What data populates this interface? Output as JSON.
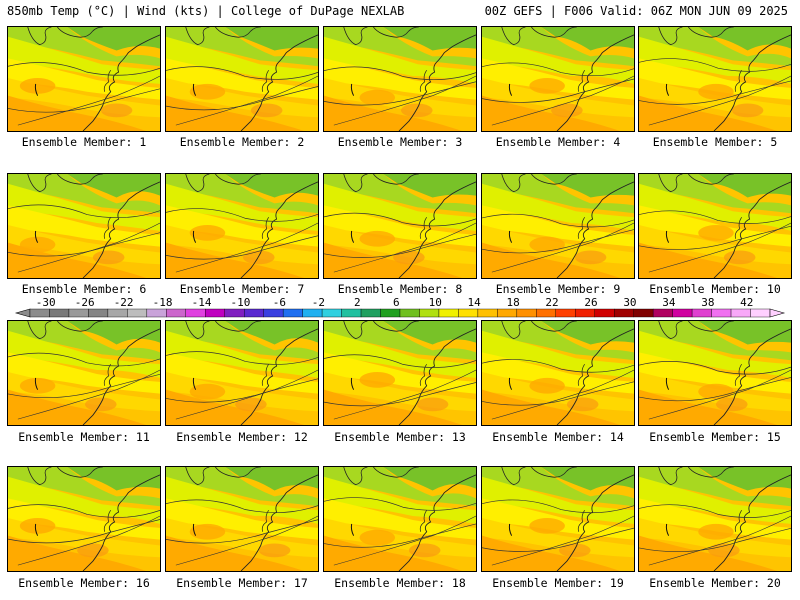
{
  "header": {
    "left": "850mb Temp (°C) | Wind (kts) | College of DuPage NEXLAB",
    "right": "00Z GEFS | F006 Valid: 06Z MON JUN 09 2025"
  },
  "panel_label_prefix": "Ensemble Member: ",
  "members": [
    {
      "id": 1,
      "label": "Ensemble Member: 1"
    },
    {
      "id": 2,
      "label": "Ensemble Member: 2"
    },
    {
      "id": 3,
      "label": "Ensemble Member: 3"
    },
    {
      "id": 4,
      "label": "Ensemble Member: 4"
    },
    {
      "id": 5,
      "label": "Ensemble Member: 5"
    },
    {
      "id": 6,
      "label": "Ensemble Member: 6"
    },
    {
      "id": 7,
      "label": "Ensemble Member: 7"
    },
    {
      "id": 8,
      "label": "Ensemble Member: 8"
    },
    {
      "id": 9,
      "label": "Ensemble Member: 9"
    },
    {
      "id": 10,
      "label": "Ensemble Member: 10"
    },
    {
      "id": 11,
      "label": "Ensemble Member: 11"
    },
    {
      "id": 12,
      "label": "Ensemble Member: 12"
    },
    {
      "id": 13,
      "label": "Ensemble Member: 13"
    },
    {
      "id": 14,
      "label": "Ensemble Member: 14"
    },
    {
      "id": 15,
      "label": "Ensemble Member: 15"
    },
    {
      "id": 16,
      "label": "Ensemble Member: 16"
    },
    {
      "id": 17,
      "label": "Ensemble Member: 17"
    },
    {
      "id": 18,
      "label": "Ensemble Member: 18"
    },
    {
      "id": 19,
      "label": "Ensemble Member: 19"
    },
    {
      "id": 20,
      "label": "Ensemble Member: 20"
    }
  ],
  "colorbar": {
    "ticks": [
      "-30",
      "-26",
      "-22",
      "-18",
      "-14",
      "-10",
      "-6",
      "-2",
      "2",
      "6",
      "10",
      "14",
      "18",
      "22",
      "26",
      "30",
      "34",
      "38",
      "42"
    ],
    "colors": [
      "#8c8c8c",
      "#7a7a7a",
      "#9a9a9a",
      "#858585",
      "#a7a7a7",
      "#bdbdbd",
      "#c9a3d9",
      "#cc66cc",
      "#e040e0",
      "#c000c0",
      "#8020c0",
      "#5a2ad0",
      "#3a40e0",
      "#1f6ff0",
      "#20b0f0",
      "#30d0e0",
      "#20c0a0",
      "#20a060",
      "#20a020",
      "#70c020",
      "#b0e010",
      "#f0f000",
      "#ffe000",
      "#ffc000",
      "#ffa800",
      "#ff9000",
      "#ff7000",
      "#ff4000",
      "#f02000",
      "#d00000",
      "#a00000",
      "#800000",
      "#b00060",
      "#d000a0",
      "#e040d0",
      "#f070f0",
      "#f8a8f8",
      "#ffd0ff"
    ],
    "ramp": [
      "#78c228",
      "#a8d820",
      "#e0f000",
      "#ffef00",
      "#ffd800",
      "#ffc400",
      "#ffaa00",
      "#f99a10"
    ]
  }
}
